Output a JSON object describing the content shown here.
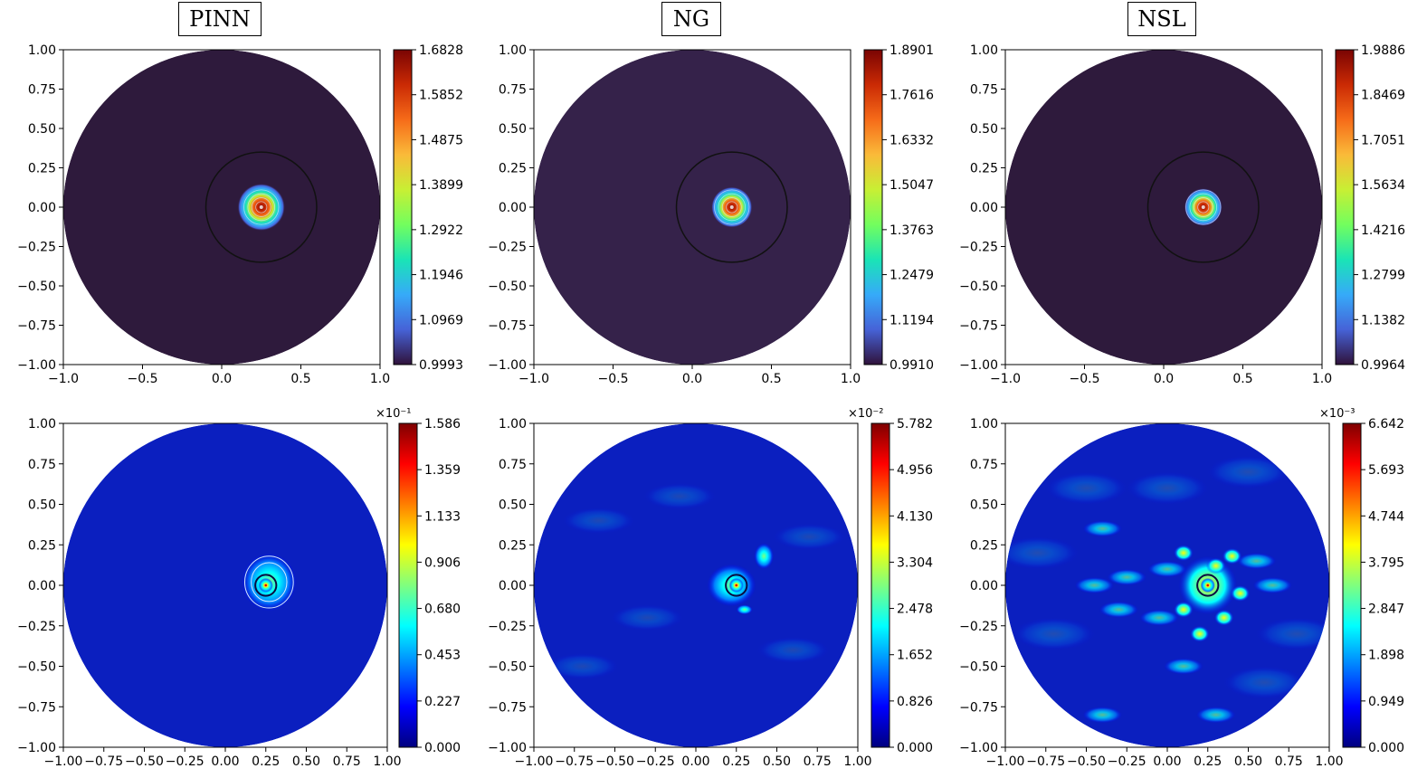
{
  "panel_titles": [
    "PINN",
    "NG",
    "NSL"
  ],
  "chart_data": [
    {
      "type": "heatmap",
      "title": "PINN",
      "row": "solution",
      "xlim": [
        -1.0,
        1.0
      ],
      "ylim": [
        -1.0,
        1.0
      ],
      "xticks": [
        "−1.0",
        "−0.5",
        "0.0",
        "0.5",
        "1.0"
      ],
      "yticks": [
        "1.00",
        "0.75",
        "0.50",
        "0.25",
        "0.00",
        "−0.25",
        "−0.50",
        "−0.75",
        "−1.00"
      ],
      "colorbar": {
        "min": 0.9993,
        "max": 1.6828,
        "exponent": "",
        "ticks": [
          "1.6828",
          "1.5852",
          "1.4875",
          "1.3899",
          "1.2922",
          "1.1946",
          "1.0969",
          "0.9993"
        ]
      },
      "colormap": "turbo",
      "peak_center": [
        0.25,
        0.0
      ],
      "domain": "unit-disk"
    },
    {
      "type": "heatmap",
      "title": "NG",
      "row": "solution",
      "xlim": [
        -1.0,
        1.0
      ],
      "ylim": [
        -1.0,
        1.0
      ],
      "xticks": [
        "−1.0",
        "−0.5",
        "0.0",
        "0.5",
        "1.0"
      ],
      "yticks": [
        "1.00",
        "0.75",
        "0.50",
        "0.25",
        "0.00",
        "−0.25",
        "−0.50",
        "−0.75",
        "−1.00"
      ],
      "colorbar": {
        "min": 0.991,
        "max": 1.8901,
        "exponent": "",
        "ticks": [
          "1.8901",
          "1.7616",
          "1.6332",
          "1.5047",
          "1.3763",
          "1.2479",
          "1.1194",
          "0.9910"
        ]
      },
      "colormap": "turbo",
      "peak_center": [
        0.25,
        0.0
      ],
      "domain": "unit-disk"
    },
    {
      "type": "heatmap",
      "title": "NSL",
      "row": "solution",
      "xlim": [
        -1.0,
        1.0
      ],
      "ylim": [
        -1.0,
        1.0
      ],
      "xticks": [
        "−1.0",
        "−0.5",
        "0.0",
        "0.5",
        "1.0"
      ],
      "yticks": [
        "1.00",
        "0.75",
        "0.50",
        "0.25",
        "0.00",
        "−0.25",
        "−0.50",
        "−0.75",
        "−1.00"
      ],
      "colorbar": {
        "min": 0.9964,
        "max": 1.9886,
        "exponent": "",
        "ticks": [
          "1.9886",
          "1.8469",
          "1.7051",
          "1.5634",
          "1.4216",
          "1.2799",
          "1.1382",
          "0.9964"
        ]
      },
      "colormap": "turbo",
      "peak_center": [
        0.25,
        0.0
      ],
      "domain": "unit-disk"
    },
    {
      "type": "heatmap",
      "title": "PINN",
      "row": "error",
      "xlim": [
        -1.0,
        1.0
      ],
      "ylim": [
        -1.0,
        1.0
      ],
      "xticks": [
        "−1.00",
        "−0.75",
        "−0.50",
        "−0.25",
        "0.00",
        "0.25",
        "0.50",
        "0.75",
        "1.00"
      ],
      "yticks": [
        "1.00",
        "0.75",
        "0.50",
        "0.25",
        "0.00",
        "−0.25",
        "−0.50",
        "−0.75",
        "−1.00"
      ],
      "colorbar": {
        "min": 0.0,
        "max": 1.586,
        "exponent": "×10⁻¹",
        "ticks": [
          "1.586",
          "1.359",
          "1.133",
          "0.906",
          "0.680",
          "0.453",
          "0.227",
          "0.000"
        ]
      },
      "colormap": "jet",
      "peak_center": [
        0.25,
        0.0
      ],
      "domain": "unit-disk"
    },
    {
      "type": "heatmap",
      "title": "NG",
      "row": "error",
      "xlim": [
        -1.0,
        1.0
      ],
      "ylim": [
        -1.0,
        1.0
      ],
      "xticks": [
        "−1.00",
        "−0.75",
        "−0.50",
        "−0.25",
        "0.00",
        "0.25",
        "0.50",
        "0.75",
        "1.00"
      ],
      "yticks": [
        "1.00",
        "0.75",
        "0.50",
        "0.25",
        "0.00",
        "−0.25",
        "−0.50",
        "−0.75",
        "−1.00"
      ],
      "colorbar": {
        "min": 0.0,
        "max": 5.782,
        "exponent": "×10⁻²",
        "ticks": [
          "5.782",
          "4.956",
          "4.130",
          "3.304",
          "2.478",
          "1.652",
          "0.826",
          "0.000"
        ]
      },
      "colormap": "jet",
      "peak_center": [
        0.25,
        0.0
      ],
      "domain": "unit-disk"
    },
    {
      "type": "heatmap",
      "title": "NSL",
      "row": "error",
      "xlim": [
        -1.0,
        1.0
      ],
      "ylim": [
        -1.0,
        1.0
      ],
      "xticks": [
        "−1.00",
        "−0.75",
        "−0.50",
        "−0.25",
        "0.00",
        "0.25",
        "0.50",
        "0.75",
        "1.00"
      ],
      "yticks": [
        "1.00",
        "0.75",
        "0.50",
        "0.25",
        "0.00",
        "−0.25",
        "−0.50",
        "−0.75",
        "−1.00"
      ],
      "colorbar": {
        "min": 0.0,
        "max": 6.642,
        "exponent": "×10⁻³",
        "ticks": [
          "6.642",
          "5.693",
          "4.744",
          "3.795",
          "2.847",
          "1.898",
          "0.949",
          "0.000"
        ]
      },
      "colormap": "jet",
      "peak_center": [
        0.25,
        0.0
      ],
      "domain": "unit-disk"
    }
  ],
  "colors": {
    "background_dark": "#2e1a3c",
    "background_ng": "#35224a",
    "error_background": "#0b1fbf",
    "turbo": [
      "#30123b",
      "#4662d7",
      "#36aaf9",
      "#1ae4b6",
      "#72fe5e",
      "#c8ef34",
      "#faba39",
      "#f66b19",
      "#ca2a04",
      "#7a0403"
    ],
    "jet": [
      "#00007f",
      "#0000ff",
      "#007fff",
      "#00ffff",
      "#7fff7f",
      "#ffff00",
      "#ff7f00",
      "#ff0000",
      "#7f0000"
    ]
  }
}
